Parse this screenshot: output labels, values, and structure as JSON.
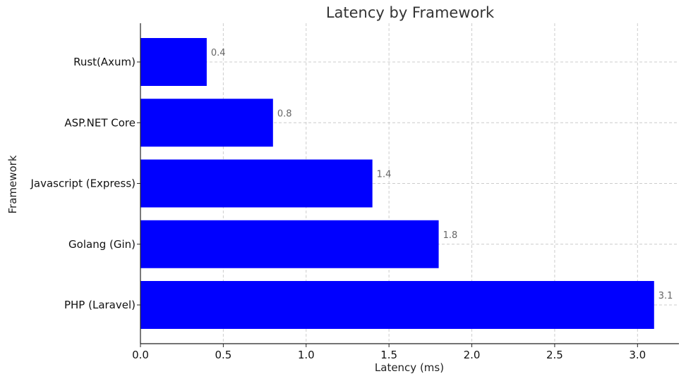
{
  "chart_data": {
    "type": "bar",
    "orientation": "horizontal",
    "title": "Latency by Framework",
    "xlabel": "Latency (ms)",
    "ylabel": "Framework",
    "categories": [
      "Rust(Axum)",
      "ASP.NET Core",
      "Javascript (Express)",
      "Golang (Gin)",
      "PHP (Laravel)"
    ],
    "values": [
      0.4,
      0.8,
      1.4,
      1.8,
      3.1
    ],
    "data_labels": [
      "0.4",
      "0.8",
      "1.4",
      "1.8",
      "3.1"
    ],
    "xlim": [
      0,
      3.25
    ],
    "xticks": [
      0.0,
      0.5,
      1.0,
      1.5,
      2.0,
      2.5,
      3.0
    ],
    "xtick_labels": [
      "0.0",
      "0.5",
      "1.0",
      "1.5",
      "2.0",
      "2.5",
      "3.0"
    ],
    "grid": true,
    "bar_color": "#0000ff"
  }
}
